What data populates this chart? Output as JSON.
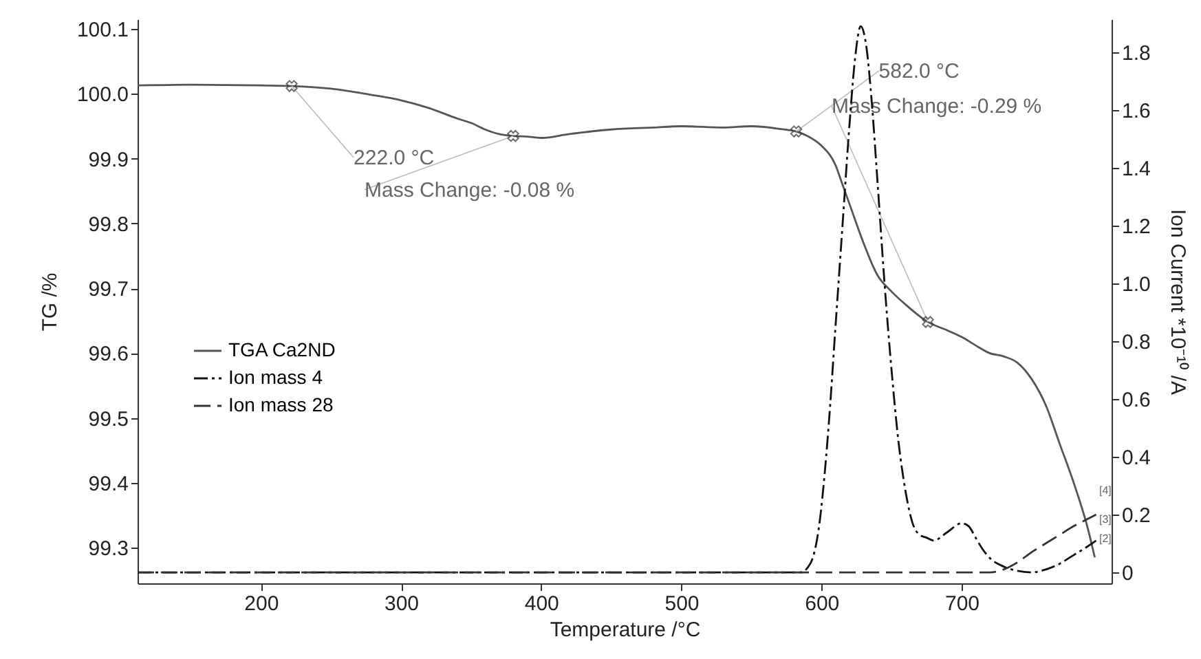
{
  "chart_data": {
    "type": "line",
    "xlabel": "Temperature /°C",
    "ylabel": "TG /%",
    "y2label": "Ion Current *10⁻¹⁰ /A",
    "xlim": [
      112,
      807
    ],
    "xticks": [
      200,
      300,
      400,
      500,
      600,
      700
    ],
    "ylim": [
      99.245,
      100.115
    ],
    "yticks": [
      99.3,
      99.4,
      99.5,
      99.6,
      99.7,
      99.8,
      99.9,
      {
        "value": 100,
        "label": "100.0"
      },
      100.1
    ],
    "y2lim": [
      -0.038,
      1.914
    ],
    "y2ticks": [
      0,
      0.2,
      0.4,
      0.6,
      0.8,
      {
        "value": 1,
        "label": "1.0"
      },
      1.2,
      1.4,
      1.6,
      1.8
    ],
    "grid": false,
    "legend": "left",
    "series": [
      {
        "name": "TGA Ca2ND",
        "color": "#555555",
        "line_style": "solid",
        "x": [
          112,
          150,
          200,
          222,
          250,
          280,
          300,
          320,
          340,
          350,
          360,
          370,
          380,
          390,
          400,
          420,
          450,
          480,
          500,
          530,
          550,
          570,
          582,
          590,
          600,
          610,
          615,
          620,
          630,
          640,
          650,
          660,
          676,
          690,
          700,
          710,
          720,
          730,
          740,
          750,
          760,
          770,
          780,
          790,
          795
        ],
        "values": [
          100.013,
          100.014,
          100.013,
          100.012,
          100.008,
          99.998,
          99.99,
          99.978,
          99.962,
          99.955,
          99.945,
          99.938,
          99.935,
          99.934,
          99.932,
          99.938,
          99.945,
          99.948,
          99.95,
          99.948,
          99.95,
          99.946,
          99.942,
          99.935,
          99.92,
          99.89,
          99.86,
          99.83,
          99.77,
          99.72,
          99.695,
          99.675,
          99.648,
          99.635,
          99.625,
          99.612,
          99.6,
          99.595,
          99.585,
          99.56,
          99.52,
          99.46,
          99.4,
          99.33,
          99.285
        ]
      },
      {
        "name": "Ion mass 4",
        "color": "#111111",
        "axis": "y2",
        "line_style": "dashdot",
        "x": [
          112,
          300,
          500,
          585,
          592,
          598,
          605,
          610,
          615,
          620,
          624,
          628,
          632,
          636,
          640,
          645,
          650,
          655,
          660,
          665,
          670,
          675,
          680,
          690,
          700,
          705,
          710,
          715,
          720,
          730,
          740,
          750,
          760,
          770,
          780,
          790,
          796
        ],
        "values": [
          0,
          0,
          0,
          0,
          0.03,
          0.15,
          0.5,
          0.85,
          1.2,
          1.55,
          1.78,
          1.89,
          1.82,
          1.62,
          1.35,
          1.0,
          0.7,
          0.45,
          0.28,
          0.17,
          0.13,
          0.12,
          0.11,
          0.14,
          0.17,
          0.16,
          0.12,
          0.08,
          0.05,
          0.02,
          0.005,
          0.0,
          0.01,
          0.03,
          0.06,
          0.09,
          0.11
        ]
      },
      {
        "name": "Ion mass 28",
        "color": "#333333",
        "axis": "y2",
        "line_style": "dashed",
        "x": [
          112,
          300,
          500,
          700,
          720,
          730,
          740,
          750,
          760,
          770,
          780,
          790,
          796
        ],
        "values": [
          0,
          0,
          0,
          0,
          0.0,
          0.01,
          0.035,
          0.07,
          0.1,
          0.13,
          0.16,
          0.185,
          0.2
        ]
      }
    ],
    "annotations": [
      {
        "text": "222.0 °C",
        "x": 222,
        "y": 100.012
      },
      {
        "text": "Mass Change: -0.08 %",
        "x": 380,
        "y": 99.935
      },
      {
        "text": "582.0 °C",
        "x": 582,
        "y": 99.942
      },
      {
        "text": "Mass Change: -0.29 %",
        "x": 676,
        "y": 99.648
      },
      "[4]",
      "[3]",
      "[2]"
    ]
  }
}
